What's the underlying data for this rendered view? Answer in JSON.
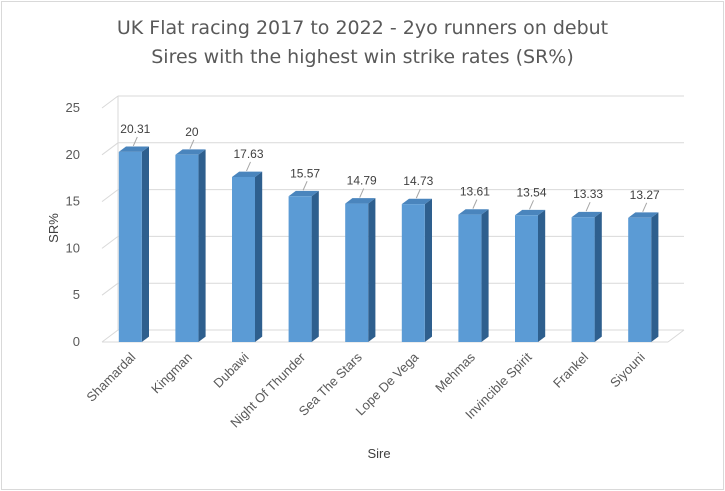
{
  "chart_data": {
    "type": "bar",
    "title": "UK Flat racing 2017 to 2022 - 2yo runners on debut",
    "subtitle": "Sires with the highest win strike rates (SR%)",
    "xlabel": "Sire",
    "ylabel": "SR%",
    "ylim": [
      0,
      25
    ],
    "yticks": [
      "0",
      "5",
      "10",
      "15",
      "20",
      "25"
    ],
    "categories": [
      "Shamardal",
      "Kingman",
      "Dubawi",
      "Night Of Thunder",
      "Sea The Stars",
      "Lope De Vega",
      "Mehmas",
      "Invincible Spirit",
      "Frankel",
      "Siyouni"
    ],
    "values": [
      20.31,
      20,
      17.63,
      15.57,
      14.79,
      14.73,
      13.61,
      13.54,
      13.33,
      13.27
    ],
    "value_labels": [
      "20.31",
      "20",
      "17.63",
      "15.57",
      "14.79",
      "14.73",
      "13.61",
      "13.54",
      "13.33",
      "13.27"
    ],
    "grid": true,
    "legend": "none",
    "style": "3d-column",
    "colors": {
      "bar_front": "#5b9bd5",
      "bar_side": "#2e5f8e",
      "bar_top": "#4a85bd",
      "grid": "#d9d9d9"
    }
  }
}
